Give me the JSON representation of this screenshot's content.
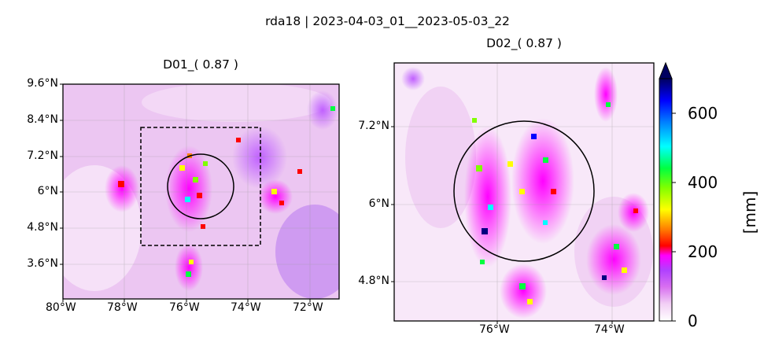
{
  "title": "rda18 | 2023-04-03_01__2023-05-03_22",
  "panels": [
    {
      "title": "D01_( 0.87 )",
      "xticks": [
        "80°W",
        "78°W",
        "76°W",
        "74°W",
        "72°W"
      ],
      "yticks": [
        "9.6°N",
        "8.4°N",
        "7.2°N",
        "6°N",
        "4.8°N",
        "3.6°N"
      ]
    },
    {
      "title": "D02_( 0.87 )",
      "xticks": [
        "76°W",
        "74°W"
      ],
      "yticks": [
        "7.2°N",
        "6°N",
        "4.8°N"
      ]
    }
  ],
  "colorbar": {
    "label": "[mm]",
    "ticks": [
      "0",
      "200",
      "400",
      "600"
    ],
    "range": [
      0,
      700
    ],
    "colormap": [
      "#ffffff",
      "#f2d0f5",
      "#e08cf0",
      "#b84fff",
      "#ff00ff",
      "#ff0000",
      "#ff8000",
      "#ffff00",
      "#80ff00",
      "#00ff40",
      "#00ffff",
      "#0080ff",
      "#0000ff",
      "#000060"
    ]
  }
}
